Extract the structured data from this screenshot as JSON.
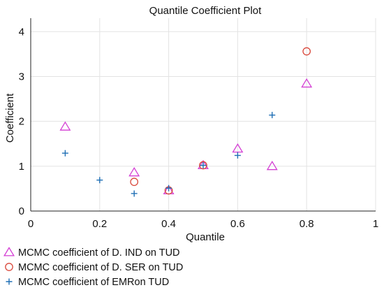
{
  "chart_data": {
    "type": "scatter",
    "title": "Quantile Coefficient Plot",
    "xlabel": "Quantile",
    "ylabel": "Coefficient",
    "xlim": [
      0,
      1
    ],
    "ylim": [
      0,
      4.3
    ],
    "xticks": [
      0,
      0.2,
      0.4,
      0.6,
      0.8,
      1
    ],
    "xtick_labels": [
      "0",
      "0.2",
      "0.4",
      "0.6",
      "0.8",
      "1"
    ],
    "yticks": [
      0,
      1,
      2,
      3,
      4
    ],
    "ytick_labels": [
      "0",
      "1",
      "2",
      "3",
      "4"
    ],
    "grid": true,
    "legend_position": "bottom-left",
    "series": [
      {
        "name": "MCMC coefficient of D. IND on TUD",
        "marker": "triangle",
        "color": "#d43fd4",
        "x": [
          0.1,
          0.3,
          0.4,
          0.5,
          0.6,
          0.7,
          0.8
        ],
        "y": [
          1.88,
          0.86,
          0.46,
          1.02,
          1.39,
          1.0,
          2.84
        ]
      },
      {
        "name": "MCMC coefficient of D. SER on TUD",
        "marker": "circle",
        "color": "#d9483b",
        "x": [
          0.3,
          0.4,
          0.5,
          0.8
        ],
        "y": [
          0.65,
          0.46,
          1.02,
          3.56
        ]
      },
      {
        "name": "MCMC coefficient of EMRon TUD",
        "marker": "plus",
        "color": "#1f6fb5",
        "x": [
          0.1,
          0.2,
          0.3,
          0.4,
          0.5,
          0.6,
          0.7
        ],
        "y": [
          1.29,
          0.69,
          0.39,
          0.51,
          1.02,
          1.24,
          2.14
        ]
      }
    ]
  }
}
